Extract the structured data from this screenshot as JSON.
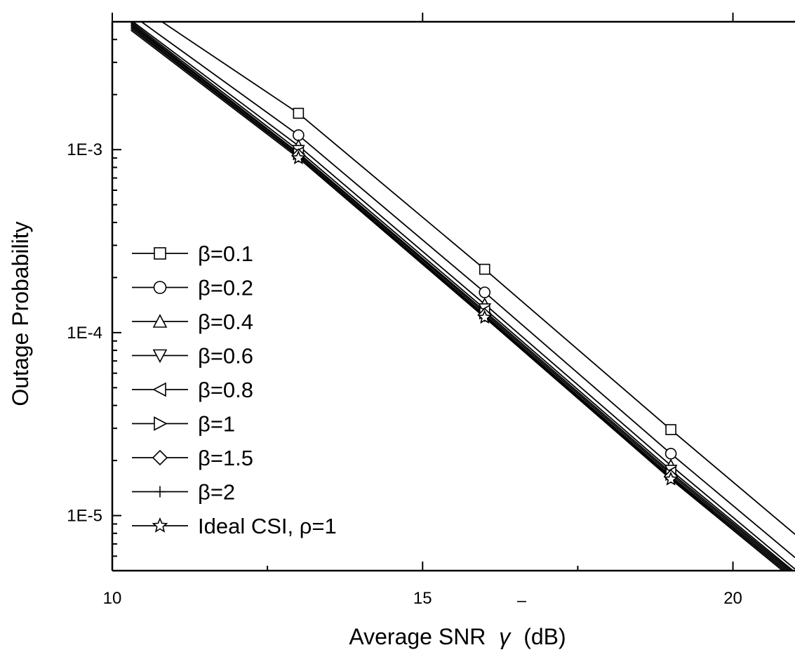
{
  "chart_data": {
    "type": "line",
    "xlabel": "Average SNR",
    "xlabel_symbol": "γ",
    "xlabel_unit": "(dB)",
    "ylabel": "Outage Probability",
    "xlim": [
      10,
      21
    ],
    "ylim": [
      5e-06,
      0.005
    ],
    "yscale": "log",
    "xticks": [
      10,
      15,
      20
    ],
    "xtick_labels": [
      "10",
      "15",
      "20"
    ],
    "xminor_ticks": [
      12.5,
      17.5
    ],
    "yticks": [
      0.001,
      0.0001,
      1e-05
    ],
    "ytick_labels": [
      "1E-3",
      "1E-4",
      "1E-5"
    ],
    "grid": false,
    "legend_position": "left",
    "x": [
      10.3,
      13,
      16,
      19,
      21
    ],
    "series": [
      {
        "name": "β=0.1",
        "marker": "square",
        "values": [
          0.0065,
          0.00158,
          0.000222,
          2.95e-05,
          7.9e-06
        ]
      },
      {
        "name": "β=0.2",
        "marker": "circle",
        "values": [
          0.0055,
          0.0012,
          0.000166,
          2.18e-05,
          5.9e-06
        ]
      },
      {
        "name": "β=0.4",
        "marker": "triangle-up",
        "values": [
          0.0051,
          0.00105,
          0.000143,
          1.88e-05,
          5.1e-06
        ]
      },
      {
        "name": "β=0.6",
        "marker": "triangle-down",
        "values": [
          0.005,
          0.00099,
          0.000135,
          1.77e-05,
          4.9e-06
        ]
      },
      {
        "name": "β=0.8",
        "marker": "triangle-left",
        "values": [
          0.0049,
          0.00096,
          0.000131,
          1.72e-05,
          4.8e-06
        ]
      },
      {
        "name": "β=1",
        "marker": "triangle-right",
        "values": [
          0.0048,
          0.00095,
          0.000128,
          1.68e-05,
          4.7e-06
        ]
      },
      {
        "name": "β=1.5",
        "marker": "diamond",
        "values": [
          0.0047,
          0.00093,
          0.000125,
          1.64e-05,
          4.6e-06
        ]
      },
      {
        "name": "β=2",
        "marker": "plus",
        "values": [
          0.0046,
          0.00092,
          0.000123,
          1.61e-05,
          4.5e-06
        ]
      },
      {
        "name": "Ideal CSI, ρ=1",
        "marker": "star",
        "values": [
          0.0045,
          0.0009,
          0.000121,
          1.58e-05,
          4.4e-06
        ]
      }
    ]
  }
}
